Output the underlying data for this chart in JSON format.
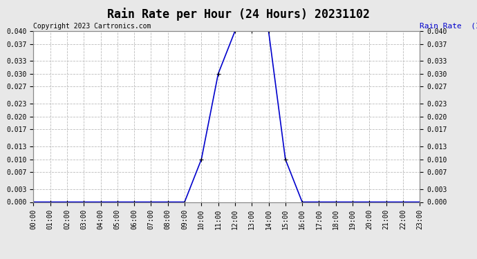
{
  "title": "Rain Rate per Hour (24 Hours) 20231102",
  "copyright": "Copyright 2023 Cartronics.com",
  "ylabel_right": "Rain Rate  (Inches/Hour)",
  "line_color": "#0000CC",
  "background_color": "#e8e8e8",
  "plot_bg_color": "#ffffff",
  "grid_color": "#bbbbbb",
  "hours": [
    0,
    1,
    2,
    3,
    4,
    5,
    6,
    7,
    8,
    9,
    10,
    11,
    12,
    13,
    14,
    15,
    16,
    17,
    18,
    19,
    20,
    21,
    22,
    23
  ],
  "values": [
    0.0,
    0.0,
    0.0,
    0.0,
    0.0,
    0.0,
    0.0,
    0.0,
    0.0,
    0.0,
    0.01,
    0.03,
    0.04,
    0.04,
    0.04,
    0.01,
    0.0,
    0.0,
    0.0,
    0.0,
    0.0,
    0.0,
    0.0,
    0.0
  ],
  "xlim": [
    0,
    23
  ],
  "ylim": [
    0.0,
    0.04
  ],
  "yticks": [
    0.0,
    0.003,
    0.007,
    0.01,
    0.013,
    0.017,
    0.02,
    0.023,
    0.027,
    0.03,
    0.033,
    0.037,
    0.04
  ],
  "ytick_labels": [
    "0.000",
    "0.003",
    "0.007",
    "0.010",
    "0.013",
    "0.017",
    "0.020",
    "0.023",
    "0.027",
    "0.030",
    "0.033",
    "0.037",
    "0.040"
  ],
  "xtick_labels": [
    "00:00",
    "01:00",
    "02:00",
    "03:00",
    "04:00",
    "05:00",
    "06:00",
    "07:00",
    "08:00",
    "09:00",
    "10:00",
    "11:00",
    "12:00",
    "13:00",
    "14:00",
    "15:00",
    "16:00",
    "17:00",
    "18:00",
    "19:00",
    "20:00",
    "21:00",
    "22:00",
    "23:00"
  ],
  "marker": "+",
  "marker_color": "#000000",
  "marker_size": 4,
  "line_width": 1.2,
  "title_fontsize": 12,
  "tick_fontsize": 7,
  "copyright_fontsize": 7,
  "ylabel_fontsize": 8
}
